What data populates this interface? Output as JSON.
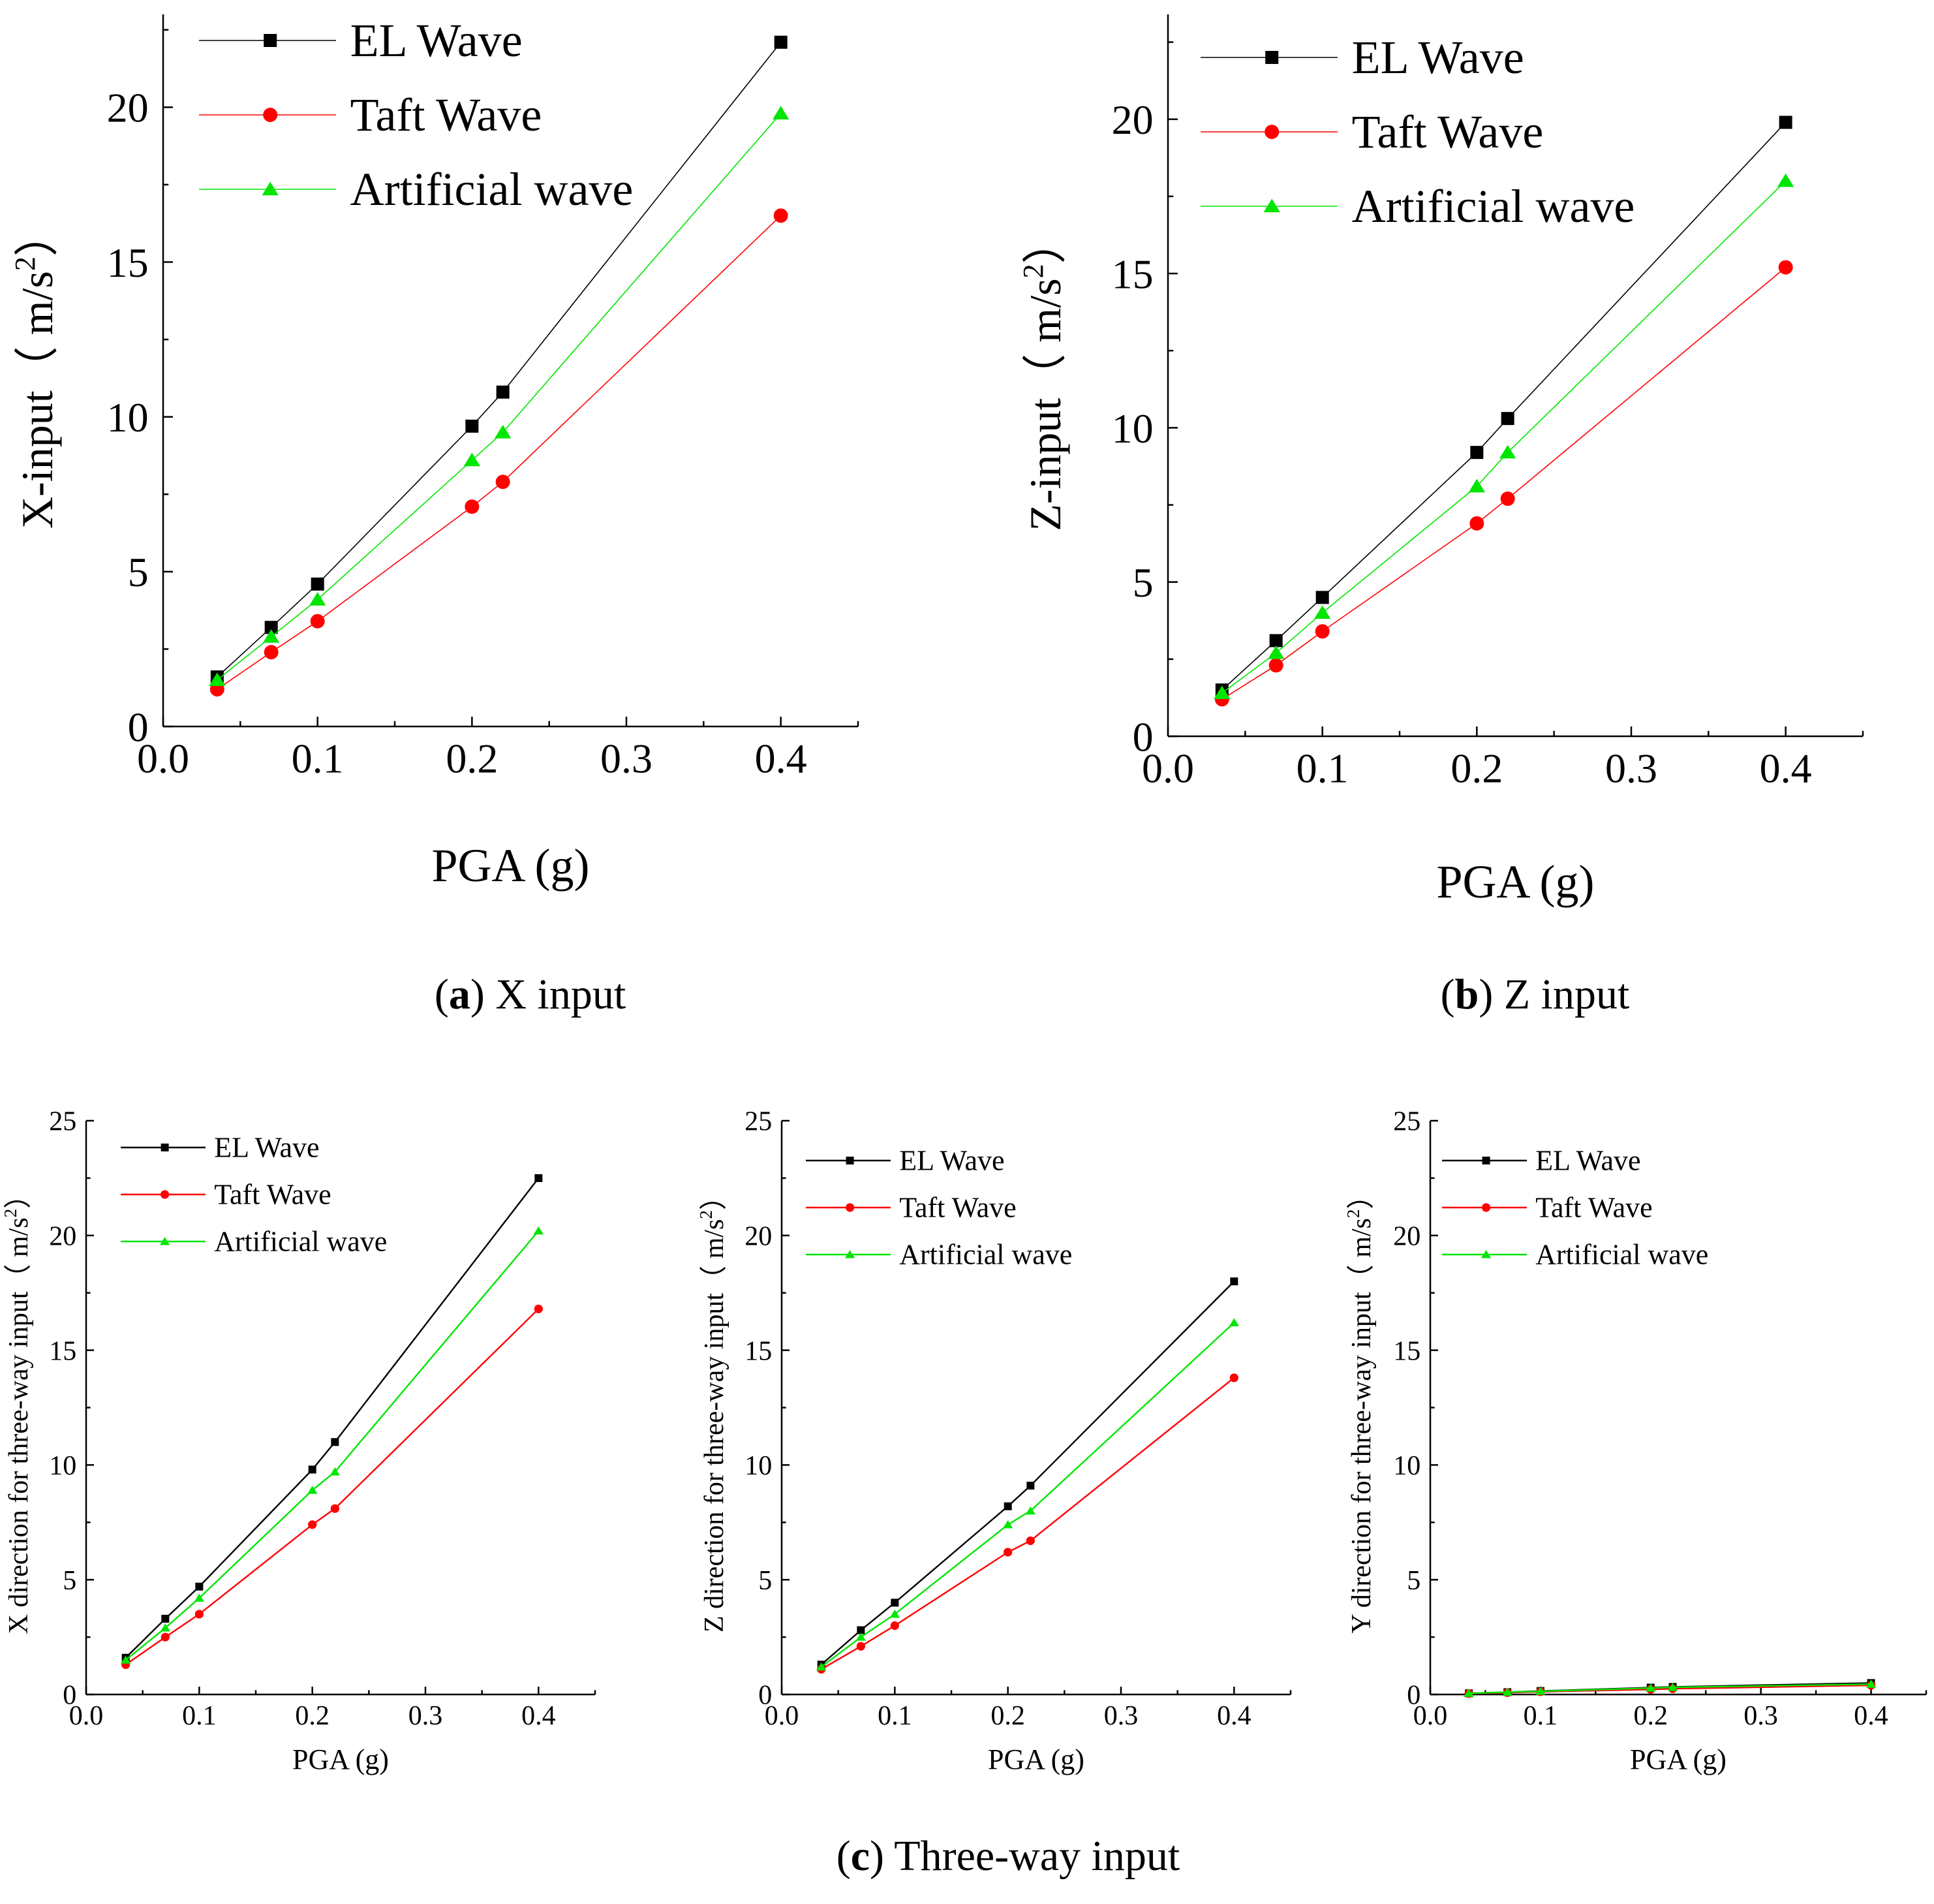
{
  "chart_data": [
    {
      "id": "a",
      "type": "line",
      "ylabel": "X-input（ m/s2）",
      "ylabel_main": "X-input（ m/s",
      "ylabel_sup": "2",
      "ylabel_end": "）",
      "xlabel": "PGA (g)",
      "xlim": [
        0,
        0.45
      ],
      "ylim": [
        0,
        23
      ],
      "xticks": [
        "0.0",
        "0.1",
        "0.2",
        "0.3",
        "0.4"
      ],
      "yticks": [
        "0",
        "5",
        "10",
        "15",
        "20"
      ],
      "x": [
        0.035,
        0.07,
        0.1,
        0.2,
        0.22,
        0.4
      ],
      "series": [
        {
          "name": "EL Wave",
          "values": [
            1.6,
            3.2,
            4.6,
            9.7,
            10.8,
            22.1
          ]
        },
        {
          "name": "Taft Wave",
          "values": [
            1.2,
            2.4,
            3.4,
            7.1,
            7.9,
            16.5
          ]
        },
        {
          "name": "Artificial wave",
          "values": [
            1.5,
            2.9,
            4.1,
            8.6,
            9.5,
            19.8
          ]
        }
      ],
      "caption_letter": "a",
      "caption_text": " X input"
    },
    {
      "id": "b",
      "type": "line",
      "ylabel": "Z-input（ m/s2）",
      "ylabel_main": "Z-input（ m/s",
      "ylabel_sup": "2",
      "ylabel_end": "）",
      "xlabel": "PGA (g)",
      "xlim": [
        0,
        0.45
      ],
      "ylim": [
        0,
        23.4
      ],
      "xticks": [
        "0.0",
        "0.1",
        "0.2",
        "0.3",
        "0.4"
      ],
      "yticks": [
        "0",
        "5",
        "10",
        "15",
        "20"
      ],
      "x": [
        0.035,
        0.07,
        0.1,
        0.2,
        0.22,
        0.4
      ],
      "series": [
        {
          "name": "EL Wave",
          "values": [
            1.5,
            3.1,
            4.5,
            9.2,
            10.3,
            19.9
          ]
        },
        {
          "name": "Taft Wave",
          "values": [
            1.2,
            2.3,
            3.4,
            6.9,
            7.7,
            15.2
          ]
        },
        {
          "name": "Artificial wave",
          "values": [
            1.4,
            2.7,
            4.0,
            8.1,
            9.2,
            18.0
          ]
        }
      ],
      "caption_letter": "b",
      "caption_text": " Z input"
    },
    {
      "id": "c1",
      "type": "line",
      "ylabel": "X direction for three-way input（ m/s2）",
      "ylabel_main": "X direction for three-way input（ m/s",
      "ylabel_sup": "2",
      "ylabel_end": "）",
      "xlabel": "PGA (g)",
      "xlim": [
        0,
        0.45
      ],
      "ylim": [
        0,
        25
      ],
      "xticks": [
        "0.0",
        "0.1",
        "0.2",
        "0.3",
        "0.4"
      ],
      "yticks": [
        "0",
        "5",
        "10",
        "15",
        "20",
        "25"
      ],
      "x": [
        0.035,
        0.07,
        0.1,
        0.2,
        0.22,
        0.4
      ],
      "series": [
        {
          "name": "EL Wave",
          "values": [
            1.6,
            3.3,
            4.7,
            9.8,
            11.0,
            22.5
          ]
        },
        {
          "name": "Taft Wave",
          "values": [
            1.3,
            2.5,
            3.5,
            7.4,
            8.1,
            16.8
          ]
        },
        {
          "name": "Artificial wave",
          "values": [
            1.5,
            2.9,
            4.2,
            8.9,
            9.7,
            20.2
          ]
        }
      ]
    },
    {
      "id": "c2",
      "type": "line",
      "ylabel": "Z direction for three-way input（ m/s2）",
      "ylabel_main": "Z direction for three-way input（ m/s",
      "ylabel_sup": "2",
      "ylabel_end": "）",
      "xlabel": "PGA (g)",
      "xlim": [
        0,
        0.45
      ],
      "ylim": [
        0,
        25
      ],
      "xticks": [
        "0.0",
        "0.1",
        "0.2",
        "0.3",
        "0.4"
      ],
      "yticks": [
        "0",
        "5",
        "10",
        "15",
        "20",
        "25"
      ],
      "x": [
        0.035,
        0.07,
        0.1,
        0.2,
        0.22,
        0.4
      ],
      "series": [
        {
          "name": "EL Wave",
          "values": [
            1.3,
            2.8,
            4.0,
            8.2,
            9.1,
            18.0
          ]
        },
        {
          "name": "Taft Wave",
          "values": [
            1.1,
            2.1,
            3.0,
            6.2,
            6.7,
            13.8
          ]
        },
        {
          "name": "Artificial wave",
          "values": [
            1.2,
            2.5,
            3.5,
            7.4,
            8.0,
            16.2
          ]
        }
      ]
    },
    {
      "id": "c3",
      "type": "line",
      "ylabel": "Y direction for three-way input（ m/s2）",
      "ylabel_main": "Y direction for three-way input（ m/s",
      "ylabel_sup": "2",
      "ylabel_end": "）",
      "xlabel": "PGA (g)",
      "xlim": [
        0,
        0.45
      ],
      "ylim": [
        0,
        25
      ],
      "xticks": [
        "0.0",
        "0.1",
        "0.2",
        "0.3",
        "0.4"
      ],
      "yticks": [
        "0",
        "5",
        "10",
        "15",
        "20",
        "25"
      ],
      "x": [
        0.035,
        0.07,
        0.1,
        0.2,
        0.22,
        0.4
      ],
      "series": [
        {
          "name": "EL Wave",
          "values": [
            0.05,
            0.1,
            0.15,
            0.3,
            0.33,
            0.5
          ]
        },
        {
          "name": "Taft Wave",
          "values": [
            0.04,
            0.08,
            0.12,
            0.22,
            0.25,
            0.4
          ]
        },
        {
          "name": "Artificial wave",
          "values": [
            0.05,
            0.1,
            0.14,
            0.28,
            0.31,
            0.45
          ]
        }
      ]
    }
  ],
  "caption_c": {
    "letter": "c",
    "text": " Three-way input"
  },
  "colors": {
    "EL Wave": "#000000",
    "Taft Wave": "#ff0000",
    "Artificial wave": "#00e600"
  },
  "markers": {
    "EL Wave": "square",
    "Taft Wave": "circle",
    "Artificial wave": "triangle"
  }
}
